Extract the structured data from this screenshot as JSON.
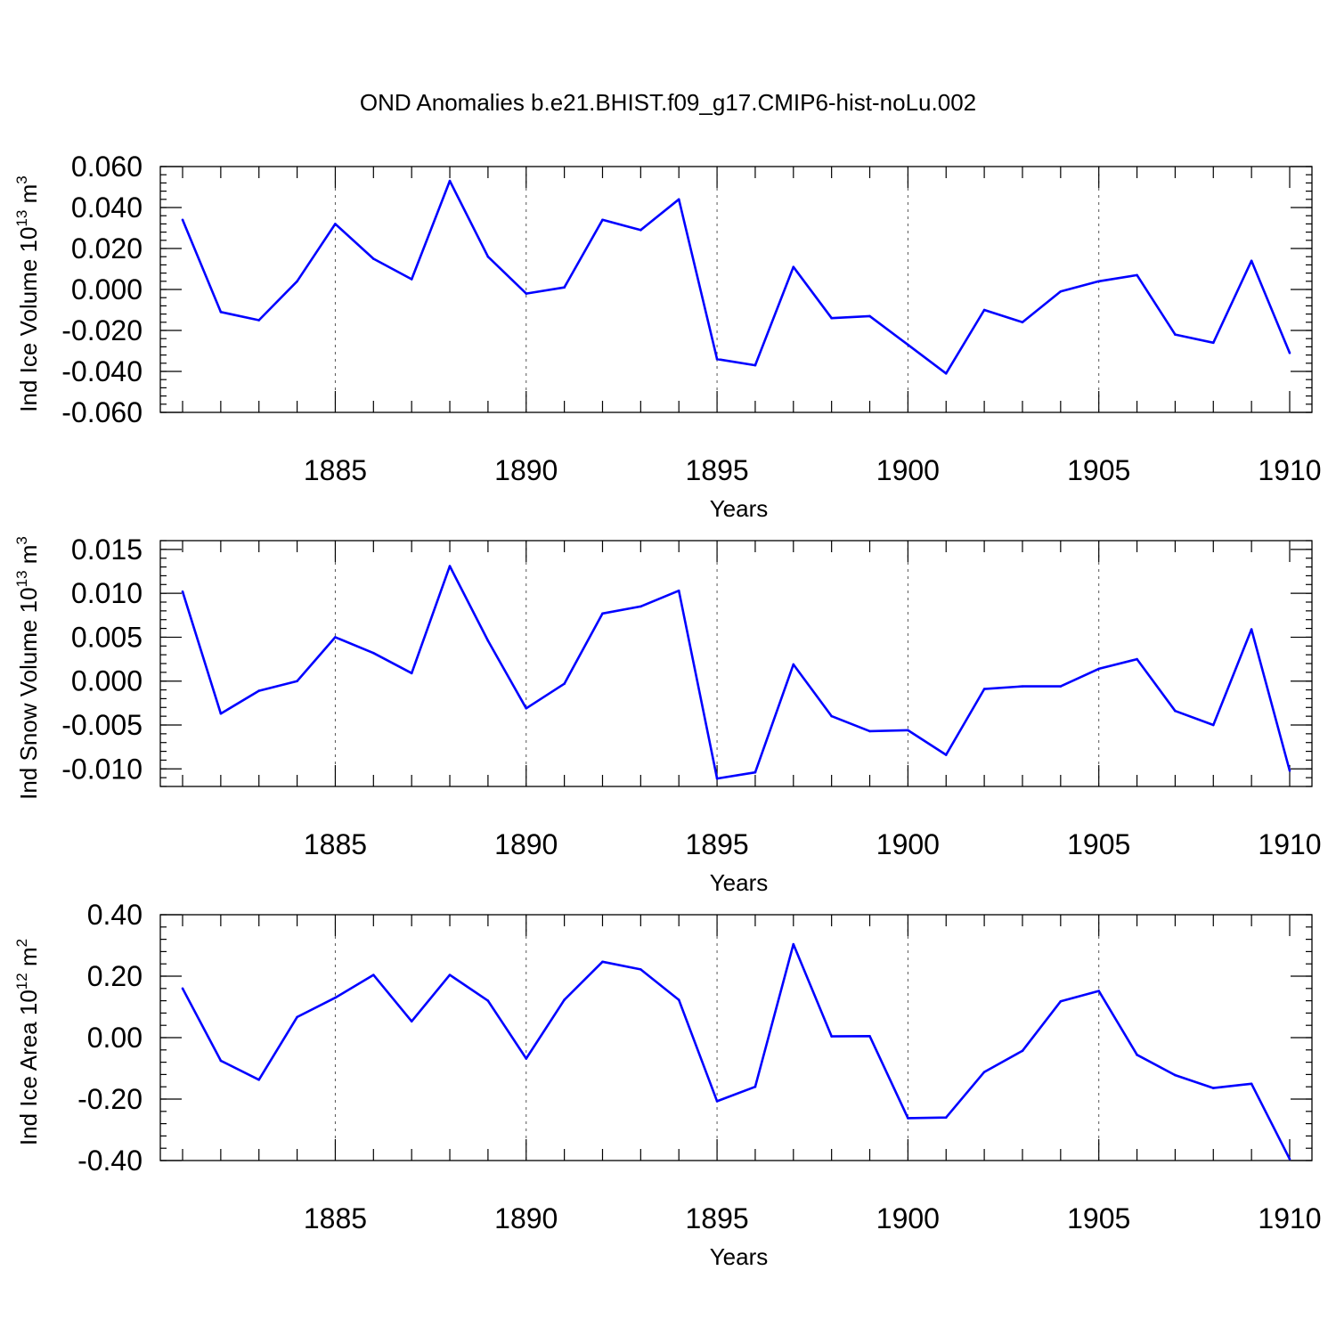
{
  "title": "OND Anomalies b.e21.BHIST.f09_g17.CMIP6-hist-noLu.002",
  "line_color": "#0000ff",
  "chart_data": [
    {
      "type": "line",
      "xlabel": "Years",
      "ylabel": {
        "base": "Ind Ice Volume 10",
        "exp": "13",
        "unit": " m",
        "unit_exp": "3"
      },
      "xlim": [
        1881,
        1910
      ],
      "ylim": [
        -0.06,
        0.06
      ],
      "yticks": [
        -0.06,
        -0.04,
        -0.02,
        0.0,
        0.02,
        0.04,
        0.06
      ],
      "ytick_labels": [
        "-0.060",
        "-0.040",
        "-0.020",
        "0.000",
        "0.020",
        "0.040",
        "0.060"
      ],
      "yminor_step": 0.004,
      "xticks": [
        1885,
        1890,
        1895,
        1900,
        1905,
        1910
      ],
      "xtick_labels": [
        "1885",
        "1890",
        "1895",
        "1900",
        "1905",
        "1910"
      ],
      "grid": "dashed vertical at major x ticks",
      "x": [
        1881,
        1882,
        1883,
        1884,
        1885,
        1886,
        1887,
        1888,
        1889,
        1890,
        1891,
        1892,
        1893,
        1894,
        1895,
        1896,
        1897,
        1898,
        1899,
        1900,
        1901,
        1902,
        1903,
        1904,
        1905,
        1906,
        1907,
        1908,
        1909,
        1910
      ],
      "values": [
        0.034,
        -0.011,
        -0.015,
        0.004,
        0.032,
        0.015,
        0.005,
        0.053,
        0.016,
        -0.002,
        0.001,
        0.034,
        0.029,
        0.044,
        -0.034,
        -0.037,
        0.011,
        -0.014,
        -0.013,
        -0.027,
        -0.041,
        -0.01,
        -0.016,
        -0.001,
        0.004,
        0.007,
        -0.022,
        -0.026,
        0.014,
        -0.031
      ]
    },
    {
      "type": "line",
      "xlabel": "Years",
      "ylabel": {
        "base": "Ind Snow Volume 10",
        "exp": "13",
        "unit": " m",
        "unit_exp": "3"
      },
      "xlim": [
        1881,
        1910
      ],
      "ylim": [
        -0.012,
        0.016
      ],
      "yticks": [
        -0.01,
        -0.005,
        0.0,
        0.005,
        0.01,
        0.015
      ],
      "ytick_labels": [
        "-0.010",
        "-0.005",
        "0.000",
        "0.005",
        "0.010",
        "0.015"
      ],
      "yminor_step": 0.001,
      "xticks": [
        1885,
        1890,
        1895,
        1900,
        1905,
        1910
      ],
      "xtick_labels": [
        "1885",
        "1890",
        "1895",
        "1900",
        "1905",
        "1910"
      ],
      "grid": "dashed vertical at major x ticks",
      "x": [
        1881,
        1882,
        1883,
        1884,
        1885,
        1886,
        1887,
        1888,
        1889,
        1890,
        1891,
        1892,
        1893,
        1894,
        1895,
        1896,
        1897,
        1898,
        1899,
        1900,
        1901,
        1902,
        1903,
        1904,
        1905,
        1906,
        1907,
        1908,
        1909,
        1910
      ],
      "values": [
        0.0102,
        -0.0037,
        -0.0011,
        0.0,
        0.005,
        0.0032,
        0.0009,
        0.0131,
        0.0046,
        -0.0031,
        -0.0003,
        0.0077,
        0.0085,
        0.0103,
        -0.0111,
        -0.0104,
        0.0019,
        -0.004,
        -0.0057,
        -0.0056,
        -0.0084,
        -0.0009,
        -0.0006,
        -0.0006,
        0.0014,
        0.0025,
        -0.0034,
        -0.005,
        0.0059,
        -0.0102
      ]
    },
    {
      "type": "line",
      "xlabel": "Years",
      "ylabel": {
        "base": "Ind Ice Area 10",
        "exp": "12",
        "unit": " m",
        "unit_exp": "2"
      },
      "xlim": [
        1881,
        1910
      ],
      "ylim": [
        -0.4,
        0.4
      ],
      "yticks": [
        -0.4,
        -0.2,
        0.0,
        0.2,
        0.4
      ],
      "ytick_labels": [
        "-0.40",
        "-0.20",
        "0.00",
        "0.20",
        "0.40"
      ],
      "yminor_step": 0.04,
      "xticks": [
        1885,
        1890,
        1895,
        1900,
        1905,
        1910
      ],
      "xtick_labels": [
        "1885",
        "1890",
        "1895",
        "1900",
        "1905",
        "1910"
      ],
      "grid": "dashed vertical at major x ticks",
      "x": [
        1881,
        1882,
        1883,
        1884,
        1885,
        1886,
        1887,
        1888,
        1889,
        1890,
        1891,
        1892,
        1893,
        1894,
        1895,
        1896,
        1897,
        1898,
        1899,
        1900,
        1901,
        1902,
        1903,
        1904,
        1905,
        1906,
        1907,
        1908,
        1909,
        1910
      ],
      "values": [
        0.16,
        -0.075,
        -0.137,
        0.067,
        0.13,
        0.204,
        0.053,
        0.204,
        0.12,
        -0.068,
        0.123,
        0.247,
        0.222,
        0.123,
        -0.207,
        -0.16,
        0.304,
        0.004,
        0.005,
        -0.262,
        -0.26,
        -0.112,
        -0.043,
        0.118,
        0.152,
        -0.056,
        -0.122,
        -0.164,
        -0.15,
        -0.395
      ]
    }
  ]
}
